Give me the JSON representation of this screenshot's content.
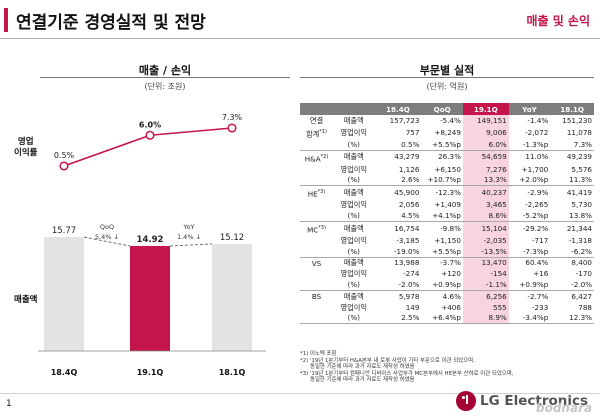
{
  "header": {
    "title": "연결기준 경영실적 및 전망",
    "section": "매출 및 손익"
  },
  "left": {
    "title": "매출 / 손익",
    "unit": "(단위: 조원)",
    "margin_label": "영업\n이익률",
    "sales_label": "매출액"
  },
  "right": {
    "title": "부문별 실적",
    "unit": "(단위: 억원)"
  },
  "colors": {
    "accent": "#c4164b",
    "gray_bar": "#e3e3e3",
    "table_header": "#7d7d7d",
    "highlight": "#f7d4df"
  },
  "chart_data": [
    {
      "type": "line",
      "categories": [
        "18.4Q",
        "19.1Q",
        "18.1Q"
      ],
      "series": [
        {
          "values": [
            0.5,
            6.0,
            7.3
          ]
        }
      ],
      "data_labels": [
        "0.5%",
        "6.0%",
        "7.3%"
      ]
    },
    {
      "type": "bar",
      "categories": [
        "18.4Q",
        "19.1Q",
        "18.1Q"
      ],
      "values": [
        15.77,
        14.92,
        15.12
      ],
      "data_labels": [
        "15.77",
        "14.92",
        "15.12"
      ],
      "highlighted_category": "19.1Q",
      "annotations": [
        {
          "label": "QoQ",
          "value": "5.4% ↓"
        },
        {
          "label": "YoY",
          "value": "1.4% ↓"
        }
      ]
    }
  ],
  "table": {
    "columns": [
      "18.4Q",
      "QoQ",
      "19.1Q",
      "YoY",
      "18.1Q"
    ],
    "highlight_column": "19.1Q",
    "rows": [
      {
        "segment": "연결",
        "metric": "매출액",
        "values": [
          "157,723",
          "-5.4%",
          "149,151",
          "-1.4%",
          "151,230"
        ]
      },
      {
        "segment": "합계",
        "sup": "*1)",
        "metric": "영업이익",
        "values": [
          "757",
          "+8,249",
          "9,006",
          "-2,072",
          "11,078"
        ]
      },
      {
        "segment": "",
        "metric": "(%)",
        "values": [
          "0.5%",
          "+5.5%p",
          "6.0%",
          "-1.3%p",
          "7.3%"
        ]
      },
      {
        "segment": "H&A",
        "sup": "*2)",
        "metric": "매출액",
        "values": [
          "43,279",
          "26.3%",
          "54,659",
          "11.0%",
          "49,239"
        ]
      },
      {
        "segment": "",
        "metric": "영업이익",
        "values": [
          "1,126",
          "+6,150",
          "7,276",
          "+1,700",
          "5,576"
        ]
      },
      {
        "segment": "",
        "metric": "(%)",
        "values": [
          "2.6%",
          "+10.7%p",
          "13.3%",
          "+2.0%p",
          "11.3%"
        ]
      },
      {
        "segment": "HE",
        "sup": "*3)",
        "metric": "매출액",
        "values": [
          "45,900",
          "-12.3%",
          "40,237",
          "-2.9%",
          "41,419"
        ]
      },
      {
        "segment": "",
        "metric": "영업이익",
        "values": [
          "2,056",
          "+1,409",
          "3,465",
          "-2,265",
          "5,730"
        ]
      },
      {
        "segment": "",
        "metric": "(%)",
        "values": [
          "4.5%",
          "+4.1%p",
          "8.6%",
          "-5.2%p",
          "13.8%"
        ]
      },
      {
        "segment": "MC",
        "sup": "*3)",
        "metric": "매출액",
        "values": [
          "16,754",
          "-9.8%",
          "15,104",
          "-29.2%",
          "21,344"
        ]
      },
      {
        "segment": "",
        "metric": "영업이익",
        "values": [
          "-3,185",
          "+1,150",
          "-2,035",
          "-717",
          "-1,318"
        ]
      },
      {
        "segment": "",
        "metric": "(%)",
        "values": [
          "-19.0%",
          "+5.5%p",
          "-13.5%",
          "-7.3%p",
          "-6.2%"
        ]
      },
      {
        "segment": "VS",
        "metric": "매출액",
        "values": [
          "13,988",
          "-3.7%",
          "13,470",
          "60.4%",
          "8,400"
        ]
      },
      {
        "segment": "",
        "metric": "영업이익",
        "values": [
          "-274",
          "+120",
          "-154",
          "+16",
          "-170"
        ]
      },
      {
        "segment": "",
        "metric": "(%)",
        "values": [
          "-2.0%",
          "+0.9%p",
          "-1.1%",
          "+0.9%p",
          "-2.0%"
        ]
      },
      {
        "segment": "BS",
        "metric": "매출액",
        "values": [
          "5,978",
          "4.6%",
          "6,256",
          "-2.7%",
          "6,427"
        ]
      },
      {
        "segment": "",
        "metric": "영업이익",
        "values": [
          "149",
          "+406",
          "555",
          "-233",
          "788"
        ]
      },
      {
        "segment": "",
        "metric": "(%)",
        "values": [
          "2.5%",
          "+6.4%p",
          "8.9%",
          "-3.4%p",
          "12.3%"
        ]
      }
    ]
  },
  "footnotes": [
    "*1) 이노텍 포함",
    "*2) '19년 1분기부터 H&A본부 내 로봇 사업이 기타 부문으로 이관 되었으며,",
    "동일한 기준에 따라 과거 자료도 재작성 하였음",
    "*3) '19년 1분기부터 컴패니언 디바이스 사업부가 MC본부에서 HE본부 산하로 이관 되었으며,",
    "동일한 기준에 따라 과거 자료도 재작성 하였음"
  ],
  "footer": {
    "page": "1",
    "logo_text": "LG Electronics",
    "watermark": "bodnara"
  }
}
